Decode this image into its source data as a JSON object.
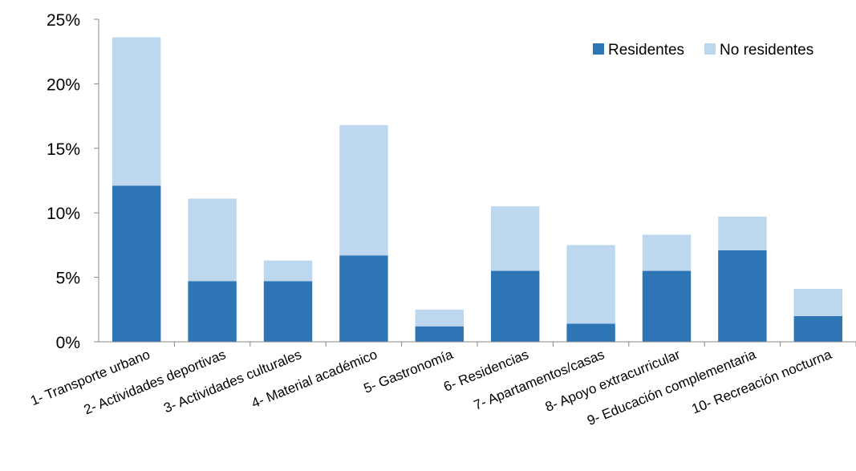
{
  "chart_data": {
    "type": "bar",
    "stacked": true,
    "categories": [
      "1- Transporte urbano",
      "2- Actividades deportivas",
      "3- Actividades culturales",
      "4- Material académico",
      "5- Gastronomía",
      "6- Residencias",
      "7- Apartamentos/casas",
      "8- Apoyo extracurricular",
      "9- Educación complementaria",
      "10- Recreación nocturna"
    ],
    "series": [
      {
        "name": "Residentes",
        "color": "#2E75B6",
        "values": [
          12.1,
          4.7,
          4.7,
          6.7,
          1.2,
          5.5,
          1.4,
          5.5,
          7.1,
          2.0
        ]
      },
      {
        "name": "No residentes",
        "color": "#BDD7EE",
        "values": [
          11.5,
          6.4,
          1.6,
          10.1,
          1.3,
          5.0,
          6.1,
          2.8,
          2.6,
          2.1
        ]
      }
    ],
    "ylim": [
      0,
      25
    ],
    "yticks": [
      "0%",
      "5%",
      "10%",
      "15%",
      "20%",
      "25%"
    ],
    "ytick_values": [
      0,
      5,
      10,
      15,
      20,
      25
    ],
    "legend_position": "top-right",
    "grid": false,
    "title": "",
    "xlabel": "",
    "ylabel": ""
  }
}
